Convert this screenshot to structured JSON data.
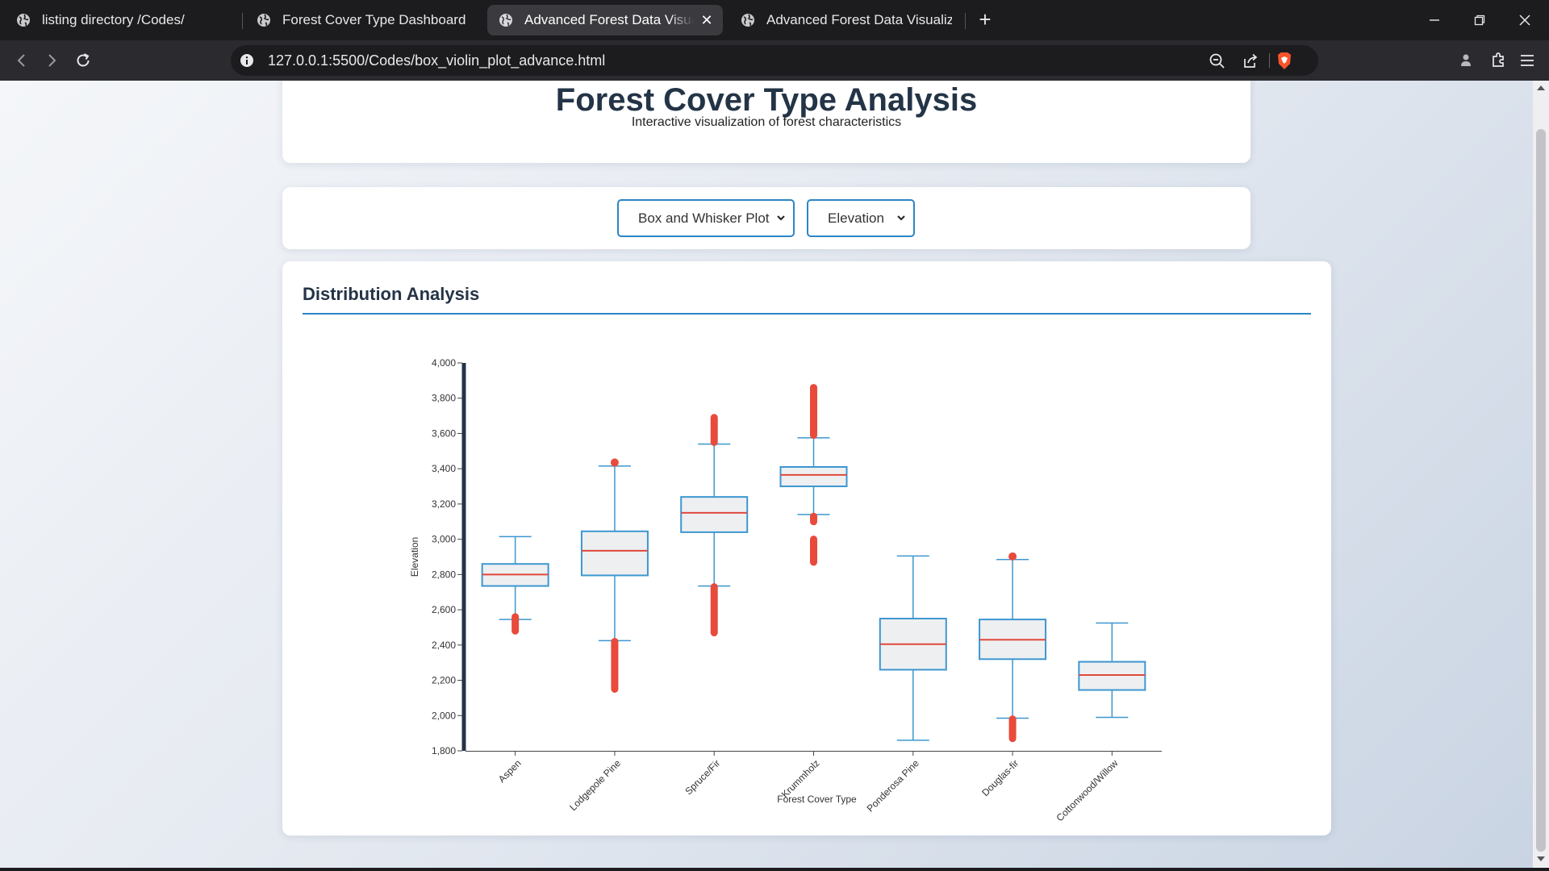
{
  "browser": {
    "tabs": [
      {
        "title": "listing directory /Codes/",
        "active": false
      },
      {
        "title": "Forest Cover Type Dashboard",
        "active": false
      },
      {
        "title": "Advanced Forest Data Visualiza",
        "active": true
      },
      {
        "title": "Advanced Forest Data Visualization",
        "active": false
      }
    ],
    "url": "127.0.0.1:5500/Codes/box_violin_plot_advance.html",
    "icons": [
      "globe-icon",
      "close-icon",
      "plus-icon",
      "back-icon",
      "forward-icon",
      "reload-icon",
      "info-icon",
      "zoom-out-icon",
      "share-icon",
      "brave-shield-icon",
      "extensions-icon",
      "menu-icon"
    ]
  },
  "header": {
    "title": "Forest Cover Type Analysis",
    "subtitle": "Interactive visualization of forest characteristics"
  },
  "controls": {
    "plot_type": "Box and Whisker Plot",
    "feature": "Elevation"
  },
  "section": {
    "title": "Distribution Analysis"
  },
  "colors": {
    "accent": "#2b86c5",
    "box_fill": "#eeeff1",
    "box_stroke": "#3c97d0",
    "median": "#e0483c",
    "outlier": "#e84a3c",
    "axis": "#243447"
  },
  "chart_data": {
    "type": "box",
    "xlabel": "Forest Cover Type",
    "ylabel": "Elevation",
    "ylim": [
      1800,
      4000
    ],
    "yticks": [
      1800,
      2000,
      2200,
      2400,
      2600,
      2800,
      3000,
      3200,
      3400,
      3600,
      3800,
      4000
    ],
    "categories": [
      "Aspen",
      "Lodgepole Pine",
      "Spruce/Fir",
      "Krummholz",
      "Ponderosa Pine",
      "Douglas-fir",
      "Cottonwood/Willow"
    ],
    "boxes": [
      {
        "category": "Aspen",
        "whisker_low": 2545,
        "q1": 2735,
        "median": 2800,
        "q3": 2860,
        "whisker_high": 3015,
        "outlier_ranges": [
          [
            2480,
            2560
          ]
        ]
      },
      {
        "category": "Lodgepole Pine",
        "whisker_low": 2425,
        "q1": 2795,
        "median": 2935,
        "q3": 3045,
        "whisker_high": 3415,
        "outlier_ranges": [
          [
            2150,
            2420
          ],
          [
            3430,
            3440
          ]
        ]
      },
      {
        "category": "Spruce/Fir",
        "whisker_low": 2735,
        "q1": 3040,
        "median": 3150,
        "q3": 3240,
        "whisker_high": 3540,
        "outlier_ranges": [
          [
            2470,
            2730
          ],
          [
            3550,
            3690
          ]
        ]
      },
      {
        "category": "Krummholz",
        "whisker_low": 3140,
        "q1": 3300,
        "median": 3365,
        "q3": 3410,
        "whisker_high": 3575,
        "outlier_ranges": [
          [
            2870,
            3000
          ],
          [
            3100,
            3130
          ],
          [
            3590,
            3860
          ]
        ]
      },
      {
        "category": "Ponderosa Pine",
        "whisker_low": 1860,
        "q1": 2260,
        "median": 2405,
        "q3": 2550,
        "whisker_high": 2905,
        "outlier_ranges": []
      },
      {
        "category": "Douglas-fir",
        "whisker_low": 1985,
        "q1": 2320,
        "median": 2430,
        "q3": 2545,
        "whisker_high": 2885,
        "outlier_ranges": [
          [
            1870,
            1980
          ],
          [
            2900,
            2905
          ]
        ]
      },
      {
        "category": "Cottonwood/Willow",
        "whisker_low": 1990,
        "q1": 2145,
        "median": 2230,
        "q3": 2305,
        "whisker_high": 2525,
        "outlier_ranges": []
      }
    ]
  }
}
